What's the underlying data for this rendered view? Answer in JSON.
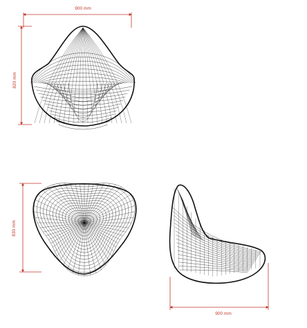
{
  "views": [
    {
      "name": "front-view",
      "width_label": "900 mm",
      "height_label": "820 mm"
    },
    {
      "name": "top-view",
      "height_label": "830 mm"
    },
    {
      "name": "side-view",
      "width_label": "900 mm"
    }
  ],
  "colors": {
    "dimension": "#c0392b",
    "mesh": "#111111",
    "background": "#ffffff"
  }
}
